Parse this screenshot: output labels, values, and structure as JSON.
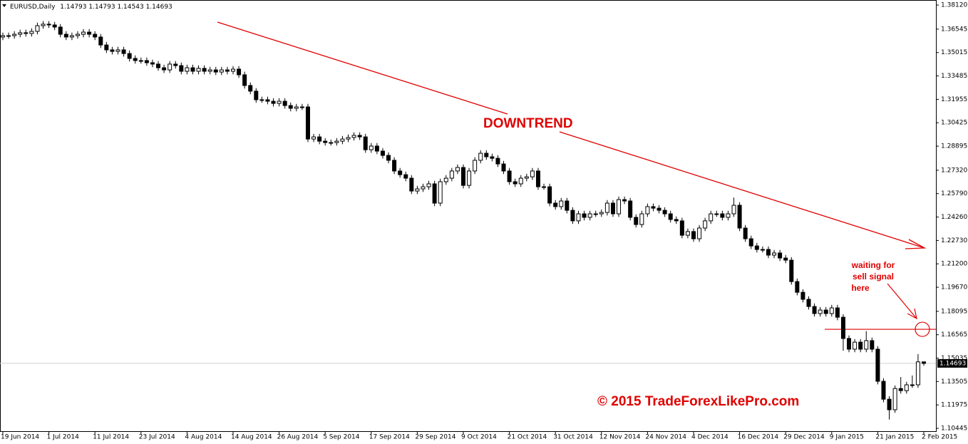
{
  "chart_data": {
    "type": "candlestick",
    "symbol": "EURUSD,Daily",
    "categories": [
      "19 Jun 2014",
      null,
      null,
      null,
      null,
      null,
      null,
      null,
      "1 Jul 2014",
      null,
      null,
      null,
      null,
      null,
      null,
      null,
      "11 Jul 2014",
      null,
      null,
      null,
      null,
      null,
      null,
      null,
      "23 Jul 2014",
      null,
      null,
      null,
      null,
      null,
      null,
      null,
      "4 Aug 2014",
      null,
      null,
      null,
      null,
      null,
      null,
      null,
      "14 Aug 2014",
      null,
      null,
      null,
      null,
      null,
      null,
      null,
      "26 Aug 2014",
      null,
      null,
      null,
      null,
      null,
      null,
      null,
      "5 Sep 2014",
      null,
      null,
      null,
      null,
      null,
      null,
      null,
      "17 Sep 2014",
      null,
      null,
      null,
      null,
      null,
      null,
      null,
      "29 Sep 2014",
      null,
      null,
      null,
      null,
      null,
      null,
      null,
      "9 Oct 2014",
      null,
      null,
      null,
      null,
      null,
      null,
      null,
      "21 Oct 2014",
      null,
      null,
      null,
      null,
      null,
      null,
      null,
      "31 Oct 2014",
      null,
      null,
      null,
      null,
      null,
      null,
      null,
      "12 Nov 2014",
      null,
      null,
      null,
      null,
      null,
      null,
      null,
      "24 Nov 2014",
      null,
      null,
      null,
      null,
      null,
      null,
      null,
      "4 Dec 2014",
      null,
      null,
      null,
      null,
      null,
      null,
      null,
      "16 Dec 2014",
      null,
      null,
      null,
      null,
      null,
      null,
      null,
      "29 Dec 2014",
      null,
      null,
      null,
      null,
      null,
      null,
      null,
      "9 Jan 2015",
      null,
      null,
      null,
      null,
      null,
      null,
      null,
      "21 Jan 2015",
      null,
      null,
      null,
      null,
      null,
      null,
      null,
      "2 Feb 2015"
    ],
    "ohlc": [
      [
        1.3603,
        1.3632,
        1.3583,
        1.3612
      ],
      [
        1.3612,
        1.3632,
        1.3592,
        1.3612
      ],
      [
        1.3612,
        1.3641,
        1.3592,
        1.3621
      ],
      [
        1.3621,
        1.3651,
        1.3601,
        1.3631
      ],
      [
        1.3631,
        1.3651,
        1.3606,
        1.3626
      ],
      [
        1.3626,
        1.366,
        1.3606,
        1.364
      ],
      [
        1.364,
        1.3697,
        1.362,
        1.3677
      ],
      [
        1.3677,
        1.3707,
        1.3657,
        1.3687
      ],
      [
        1.3687,
        1.3707,
        1.3662,
        1.3682
      ],
      [
        1.3682,
        1.3702,
        1.3648,
        1.3668
      ],
      [
        1.3668,
        1.3688,
        1.3601,
        1.3621
      ],
      [
        1.3621,
        1.3641,
        1.3583,
        1.3603
      ],
      [
        1.3603,
        1.3632,
        1.3583,
        1.3612
      ],
      [
        1.3612,
        1.3641,
        1.3592,
        1.3621
      ],
      [
        1.3621,
        1.3655,
        1.3601,
        1.3635
      ],
      [
        1.3635,
        1.3655,
        1.3601,
        1.3621
      ],
      [
        1.3621,
        1.3641,
        1.3583,
        1.3603
      ],
      [
        1.3603,
        1.3623,
        1.3531,
        1.3551
      ],
      [
        1.3551,
        1.3571,
        1.3499,
        1.3519
      ],
      [
        1.3519,
        1.3539,
        1.3489,
        1.3509
      ],
      [
        1.3509,
        1.3539,
        1.3489,
        1.3519
      ],
      [
        1.3519,
        1.3539,
        1.3475,
        1.3495
      ],
      [
        1.3495,
        1.3515,
        1.3443,
        1.3463
      ],
      [
        1.3463,
        1.3483,
        1.3429,
        1.3449
      ],
      [
        1.3449,
        1.3469,
        1.3429,
        1.3449
      ],
      [
        1.3449,
        1.3469,
        1.3415,
        1.3435
      ],
      [
        1.3435,
        1.3455,
        1.3406,
        1.3426
      ],
      [
        1.3426,
        1.3446,
        1.3382,
        1.3402
      ],
      [
        1.3402,
        1.3422,
        1.3368,
        1.3388
      ],
      [
        1.3388,
        1.3446,
        1.3368,
        1.3426
      ],
      [
        1.3426,
        1.3446,
        1.3396,
        1.3416
      ],
      [
        1.3416,
        1.3436,
        1.3359,
        1.3379
      ],
      [
        1.3379,
        1.3422,
        1.3359,
        1.3402
      ],
      [
        1.3402,
        1.3422,
        1.3359,
        1.3379
      ],
      [
        1.3379,
        1.3418,
        1.3359,
        1.3398
      ],
      [
        1.3398,
        1.3418,
        1.3359,
        1.3379
      ],
      [
        1.3379,
        1.3408,
        1.3359,
        1.3388
      ],
      [
        1.3388,
        1.3408,
        1.3354,
        1.3374
      ],
      [
        1.3374,
        1.3408,
        1.3354,
        1.3388
      ],
      [
        1.3388,
        1.3408,
        1.3359,
        1.3379
      ],
      [
        1.3379,
        1.3413,
        1.3359,
        1.3393
      ],
      [
        1.3393,
        1.3413,
        1.3336,
        1.3356
      ],
      [
        1.3356,
        1.3376,
        1.3266,
        1.3286
      ],
      [
        1.3286,
        1.3306,
        1.3229,
        1.3249
      ],
      [
        1.3249,
        1.3269,
        1.3173,
        1.3193
      ],
      [
        1.3193,
        1.3213,
        1.3173,
        1.3193
      ],
      [
        1.3193,
        1.3213,
        1.3163,
        1.3183
      ],
      [
        1.3183,
        1.3203,
        1.3149,
        1.3169
      ],
      [
        1.3169,
        1.3203,
        1.3149,
        1.3183
      ],
      [
        1.3183,
        1.3203,
        1.3135,
        1.3155
      ],
      [
        1.3155,
        1.3175,
        1.3117,
        1.3137
      ],
      [
        1.3137,
        1.3166,
        1.3117,
        1.3146
      ],
      [
        1.3146,
        1.3166,
        1.3126,
        1.3146
      ],
      [
        1.3146,
        1.3166,
        1.2916,
        1.2936
      ],
      [
        1.2936,
        1.297,
        1.2916,
        1.295
      ],
      [
        1.295,
        1.297,
        1.2902,
        1.2922
      ],
      [
        1.2922,
        1.2942,
        1.2893,
        1.2913
      ],
      [
        1.2913,
        1.2933,
        1.2893,
        1.2913
      ],
      [
        1.2913,
        1.2942,
        1.2893,
        1.2922
      ],
      [
        1.2922,
        1.2956,
        1.2902,
        1.2936
      ],
      [
        1.2936,
        1.2966,
        1.2916,
        1.2946
      ],
      [
        1.2946,
        1.298,
        1.2926,
        1.296
      ],
      [
        1.296,
        1.298,
        1.293,
        1.295
      ],
      [
        1.295,
        1.297,
        1.2846,
        1.2866
      ],
      [
        1.2866,
        1.291,
        1.2846,
        1.289
      ],
      [
        1.289,
        1.291,
        1.2837,
        1.2857
      ],
      [
        1.2857,
        1.2877,
        1.2809,
        1.2829
      ],
      [
        1.2829,
        1.2849,
        1.2777,
        1.2797
      ],
      [
        1.2797,
        1.2817,
        1.2707,
        1.2727
      ],
      [
        1.2727,
        1.2747,
        1.2683,
        1.2703
      ],
      [
        1.2703,
        1.2723,
        1.266,
        1.268
      ],
      [
        1.268,
        1.27,
        1.2576,
        1.2596
      ],
      [
        1.2596,
        1.263,
        1.2576,
        1.261
      ],
      [
        1.261,
        1.2644,
        1.259,
        1.2624
      ],
      [
        1.2624,
        1.2663,
        1.2604,
        1.2643
      ],
      [
        1.2643,
        1.2663,
        1.2497,
        1.2517
      ],
      [
        1.2517,
        1.2677,
        1.2497,
        1.2657
      ],
      [
        1.2657,
        1.27,
        1.2637,
        1.268
      ],
      [
        1.268,
        1.2747,
        1.266,
        1.2727
      ],
      [
        1.2727,
        1.277,
        1.2707,
        1.275
      ],
      [
        1.275,
        1.277,
        1.2613,
        1.2633
      ],
      [
        1.2633,
        1.2747,
        1.2613,
        1.2727
      ],
      [
        1.2727,
        1.2817,
        1.2707,
        1.2797
      ],
      [
        1.2797,
        1.2863,
        1.2777,
        1.2843
      ],
      [
        1.2843,
        1.2863,
        1.28,
        1.282
      ],
      [
        1.282,
        1.284,
        1.279,
        1.281
      ],
      [
        1.281,
        1.283,
        1.2753,
        1.2773
      ],
      [
        1.2773,
        1.2793,
        1.2707,
        1.2727
      ],
      [
        1.2727,
        1.2747,
        1.2637,
        1.2657
      ],
      [
        1.2657,
        1.2677,
        1.2623,
        1.2643
      ],
      [
        1.2643,
        1.27,
        1.2623,
        1.268
      ],
      [
        1.268,
        1.2709,
        1.266,
        1.2689
      ],
      [
        1.2689,
        1.2747,
        1.2669,
        1.2727
      ],
      [
        1.2727,
        1.2747,
        1.2604,
        1.2624
      ],
      [
        1.2624,
        1.2644,
        1.2604,
        1.2624
      ],
      [
        1.2624,
        1.2644,
        1.2497,
        1.2517
      ],
      [
        1.2517,
        1.2537,
        1.2474,
        1.2494
      ],
      [
        1.2494,
        1.2551,
        1.2474,
        1.2531
      ],
      [
        1.2531,
        1.2551,
        1.245,
        1.247
      ],
      [
        1.247,
        1.249,
        1.2381,
        1.2401
      ],
      [
        1.2401,
        1.2467,
        1.2381,
        1.2447
      ],
      [
        1.2447,
        1.2467,
        1.2404,
        1.2424
      ],
      [
        1.2424,
        1.2467,
        1.2404,
        1.2447
      ],
      [
        1.2447,
        1.2467,
        1.2427,
        1.2447
      ],
      [
        1.2447,
        1.2476,
        1.2427,
        1.2456
      ],
      [
        1.2456,
        1.2537,
        1.2436,
        1.2517
      ],
      [
        1.2517,
        1.2537,
        1.2427,
        1.2447
      ],
      [
        1.2447,
        1.256,
        1.2427,
        1.254
      ],
      [
        1.254,
        1.256,
        1.2511,
        1.2531
      ],
      [
        1.2531,
        1.2551,
        1.2404,
        1.2424
      ],
      [
        1.2424,
        1.2444,
        1.2357,
        1.2377
      ],
      [
        1.2377,
        1.2467,
        1.2357,
        1.2447
      ],
      [
        1.2447,
        1.2514,
        1.2427,
        1.2494
      ],
      [
        1.2494,
        1.2514,
        1.2464,
        1.2484
      ],
      [
        1.2484,
        1.2504,
        1.245,
        1.247
      ],
      [
        1.247,
        1.249,
        1.2427,
        1.2447
      ],
      [
        1.2447,
        1.2467,
        1.239,
        1.241
      ],
      [
        1.241,
        1.243,
        1.2381,
        1.2401
      ],
      [
        1.2401,
        1.2421,
        1.2287,
        1.2307
      ],
      [
        1.2307,
        1.2351,
        1.2287,
        1.2331
      ],
      [
        1.2331,
        1.2351,
        1.2264,
        1.2284
      ],
      [
        1.2284,
        1.2374,
        1.2264,
        1.2354
      ],
      [
        1.2354,
        1.2421,
        1.2334,
        1.2401
      ],
      [
        1.2401,
        1.2467,
        1.2381,
        1.2447
      ],
      [
        1.2447,
        1.2467,
        1.2427,
        1.2447
      ],
      [
        1.2447,
        1.2467,
        1.2404,
        1.2424
      ],
      [
        1.2424,
        1.2467,
        1.2404,
        1.2447
      ],
      [
        1.2447,
        1.2553,
        1.2427,
        1.2503
      ],
      [
        1.2503,
        1.2523,
        1.2334,
        1.2354
      ],
      [
        1.2354,
        1.2374,
        1.2264,
        1.2284
      ],
      [
        1.2284,
        1.2304,
        1.2217,
        1.2237
      ],
      [
        1.2237,
        1.2257,
        1.2194,
        1.2214
      ],
      [
        1.2214,
        1.2234,
        1.2194,
        1.2214
      ],
      [
        1.2214,
        1.2234,
        1.2157,
        1.2177
      ],
      [
        1.2177,
        1.2211,
        1.2157,
        1.2191
      ],
      [
        1.2191,
        1.2211,
        1.2138,
        1.2158
      ],
      [
        1.2158,
        1.2178,
        1.2124,
        1.2144
      ],
      [
        1.2144,
        1.2164,
        1.1984,
        1.2004
      ],
      [
        1.2004,
        1.2024,
        1.1914,
        1.1934
      ],
      [
        1.1934,
        1.1954,
        1.1868,
        1.1888
      ],
      [
        1.1888,
        1.1908,
        1.1821,
        1.1841
      ],
      [
        1.1841,
        1.1861,
        1.1775,
        1.1795
      ],
      [
        1.1795,
        1.1838,
        1.1775,
        1.1818
      ],
      [
        1.1818,
        1.1838,
        1.1775,
        1.1795
      ],
      [
        1.1795,
        1.1852,
        1.1775,
        1.1832
      ],
      [
        1.1832,
        1.1852,
        1.1751,
        1.1771
      ],
      [
        1.1771,
        1.1791,
        1.1552,
        1.1632
      ],
      [
        1.1632,
        1.1652,
        1.1542,
        1.1562
      ],
      [
        1.1562,
        1.1628,
        1.1542,
        1.1608
      ],
      [
        1.1608,
        1.1628,
        1.1542,
        1.1562
      ],
      [
        1.1562,
        1.168,
        1.1542,
        1.1618
      ],
      [
        1.1618,
        1.1638,
        1.1542,
        1.1562
      ],
      [
        1.1562,
        1.1582,
        1.1332,
        1.1352
      ],
      [
        1.1352,
        1.1372,
        1.1215,
        1.1235
      ],
      [
        1.1235,
        1.1255,
        1.1102,
        1.1166
      ],
      [
        1.1166,
        1.1325,
        1.1146,
        1.1305
      ],
      [
        1.1305,
        1.138,
        1.1271,
        1.1291
      ],
      [
        1.1291,
        1.1349,
        1.1271,
        1.1329
      ],
      [
        1.1329,
        1.139,
        1.1309,
        1.1329
      ],
      [
        1.1329,
        1.153,
        1.1309,
        1.1479
      ],
      [
        1.14793,
        1.14793,
        1.14543,
        1.14693
      ]
    ],
    "ylim": [
      1.1026,
      1.3845
    ],
    "yticks": [
      {
        "value": 1.3812,
        "label": "1.38120"
      },
      1.36545,
      1.35015,
      1.33485,
      1.31955,
      1.30425,
      1.28895,
      {
        "value": 1.2732,
        "label": "1.27320"
      },
      {
        "value": 1.2579,
        "label": "1.25790"
      },
      {
        "value": 1.2426,
        "label": "1.24260"
      },
      {
        "value": 1.2273,
        "label": "1.22730"
      },
      {
        "value": 1.212,
        "label": "1.21200"
      },
      {
        "value": 1.1967,
        "label": "1.19670"
      },
      1.18095,
      1.16565,
      1.15035,
      1.13505,
      1.11975,
      1.10445
    ],
    "up_color": "#ffffff",
    "down_color": "#000000",
    "sell_level": 1.1692,
    "annotations": {
      "trend_label": "DOWNTREND",
      "note": [
        "waiting for",
        "sell signal",
        "here"
      ],
      "copyright": "© 2015 TradeForexLikePro.com"
    }
  }
}
